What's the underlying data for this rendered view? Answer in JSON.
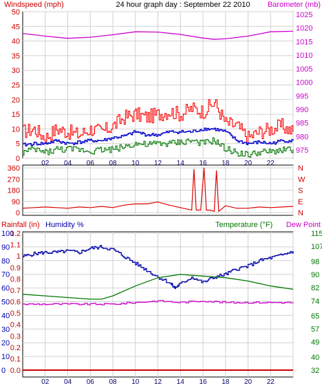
{
  "chart_data": [
    {
      "type": "line",
      "title": "24 hour graph day : September 22 2010",
      "ylabel_left": "Windspeed (mph)",
      "ylabel_right": "Barometer (mb)",
      "x_ticks": [
        "02",
        "04",
        "06",
        "08",
        "10",
        "12",
        "14",
        "16",
        "18",
        "20",
        "22",
        ""
      ],
      "y_left_ticks": [
        0,
        5,
        10,
        15,
        20,
        25,
        30,
        35,
        40,
        45,
        50
      ],
      "y_right_ticks": [
        975,
        980,
        985,
        990,
        995,
        1000,
        1005,
        1010,
        1015,
        1020,
        1025
      ],
      "ylim_left": [
        0,
        50
      ],
      "ylim_right": [
        972,
        1026
      ],
      "grid": true,
      "colors": {
        "barometer": "#cc00cc",
        "gust": "#ff0000",
        "average": "#0000cc",
        "direction_speed": "#007700"
      },
      "series": [
        {
          "key": "barometer",
          "axis": "right",
          "x": [
            0,
            2,
            4,
            6,
            8,
            10,
            12,
            14,
            16,
            17,
            18,
            20,
            22,
            24
          ],
          "values": [
            1018,
            1017,
            1016.2,
            1016.6,
            1017.5,
            1018.6,
            1018.5,
            1017.6,
            1016.3,
            1015.8,
            1016,
            1017,
            1018.6,
            1018.8
          ]
        },
        {
          "key": "gust",
          "axis": "left",
          "x": [
            0,
            1,
            2,
            3,
            4,
            5,
            6,
            7,
            8,
            9,
            10,
            11,
            12,
            13,
            14,
            15,
            16,
            17,
            18,
            19,
            20,
            21,
            22,
            23,
            24
          ],
          "values": [
            9,
            10,
            7,
            10,
            9,
            8,
            10,
            9,
            11,
            14,
            15,
            14,
            15,
            16,
            15,
            17,
            16,
            19,
            12,
            11,
            7,
            9,
            10,
            11,
            9
          ]
        },
        {
          "key": "average",
          "axis": "left",
          "x": [
            0,
            1,
            2,
            3,
            4,
            5,
            6,
            7,
            8,
            9,
            10,
            11,
            12,
            13,
            14,
            15,
            16,
            17,
            18,
            19,
            20,
            21,
            22,
            23,
            24
          ],
          "values": [
            4.5,
            5,
            5,
            6,
            5,
            5.5,
            6,
            6,
            7,
            7.5,
            9,
            8,
            8,
            9,
            9,
            9,
            10,
            10,
            9,
            6,
            5,
            5.5,
            5,
            6,
            6
          ]
        },
        {
          "key": "direction_speed",
          "axis": "left",
          "x": [
            0,
            1,
            2,
            3,
            4,
            5,
            6,
            7,
            8,
            9,
            10,
            11,
            12,
            13,
            14,
            15,
            16,
            17,
            18,
            19,
            20,
            21,
            22,
            23,
            24
          ],
          "values": [
            2,
            3,
            2,
            3,
            3,
            3,
            2.5,
            3,
            3,
            4,
            5,
            4.5,
            5,
            5,
            5.5,
            6,
            5,
            6,
            3,
            2,
            1,
            2,
            2,
            3,
            3
          ]
        }
      ]
    },
    {
      "type": "line",
      "y_left_ticks": [
        0,
        90,
        180,
        270,
        360
      ],
      "ylim": [
        0,
        360
      ],
      "right_labels": [
        "N",
        "W",
        "S",
        "E",
        "N"
      ],
      "grid": true,
      "colors": {
        "direction": "#dd0000"
      },
      "series": [
        {
          "key": "direction",
          "x": [
            0,
            1,
            2,
            3,
            4,
            5,
            6,
            7,
            8,
            9,
            10,
            11,
            12,
            13,
            14,
            15,
            15.2,
            15.4,
            15.8,
            16.1,
            16.3,
            16.6,
            17,
            17.2,
            17.4,
            18,
            19,
            20,
            21,
            22,
            23,
            24
          ],
          "values": [
            35,
            40,
            45,
            40,
            35,
            45,
            40,
            50,
            40,
            60,
            70,
            70,
            85,
            60,
            40,
            20,
            350,
            20,
            20,
            360,
            20,
            20,
            10,
            340,
            10,
            55,
            35,
            35,
            45,
            40,
            45,
            50
          ]
        }
      ]
    },
    {
      "type": "line",
      "ylabel_left": "Rainfall (in)",
      "ylabel_mid": "Humidity %",
      "ylabel_right": "Temperature (°F)",
      "ylabel_right2": "Dew Point",
      "rain_ticks": [
        "1.2",
        "1.1",
        "1",
        "0.9",
        "0.8",
        "0.7",
        "0.6",
        "0.5",
        "0.4",
        "0.3",
        "0.2",
        "0.1",
        "0.0"
      ],
      "humidity_ticks": [
        100,
        90,
        80,
        70,
        60,
        50,
        40,
        30,
        20,
        10,
        0
      ],
      "temp_ticks": [
        115,
        107,
        98,
        90,
        82,
        74,
        65,
        57,
        49,
        40,
        32
      ],
      "ylim_rain": [
        0,
        1.2
      ],
      "ylim_humidity": [
        0,
        100
      ],
      "ylim_temp": [
        32,
        115
      ],
      "grid": true,
      "colors": {
        "humidity": "#0000aa",
        "temperature": "#007700",
        "dewpoint": "#cc00cc",
        "rainfall": "#cc0000"
      },
      "series": [
        {
          "key": "humidity",
          "axis": "humidity",
          "x": [
            0,
            1,
            2,
            3,
            4,
            5,
            6,
            7,
            8,
            9,
            10,
            11,
            12,
            13,
            13.5,
            14,
            15,
            16,
            17,
            18,
            19,
            20,
            21,
            22,
            23,
            24
          ],
          "values": [
            83,
            85,
            86,
            86,
            87,
            86,
            89,
            90,
            88,
            83,
            78,
            73,
            68,
            64,
            60,
            63,
            68,
            64,
            68,
            70,
            74,
            76,
            80,
            82,
            84,
            87
          ]
        },
        {
          "key": "temperature",
          "axis": "temp",
          "x": [
            0,
            2,
            4,
            6,
            7,
            8,
            10,
            12,
            14,
            16,
            18,
            20,
            22,
            24
          ],
          "values": [
            78,
            77,
            76,
            75,
            75,
            77,
            83,
            88,
            90,
            89,
            88,
            86,
            83,
            81
          ]
        },
        {
          "key": "dewpoint",
          "axis": "temp",
          "x": [
            0,
            2,
            4,
            6,
            8,
            10,
            12,
            14,
            16,
            18,
            20,
            22,
            24
          ],
          "values": [
            72,
            72,
            72,
            72,
            72,
            73,
            74,
            73,
            74,
            73,
            73,
            73,
            73
          ]
        },
        {
          "key": "rainfall",
          "axis": "rain",
          "x": [
            0,
            24
          ],
          "values": [
            0,
            0
          ]
        }
      ]
    }
  ]
}
